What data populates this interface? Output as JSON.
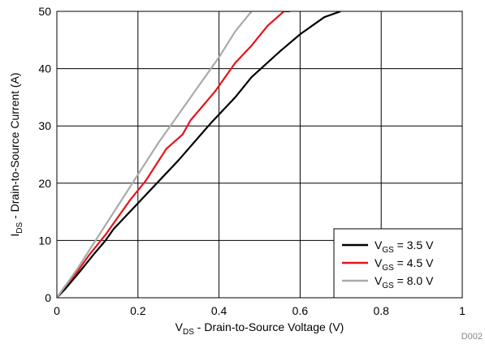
{
  "chart_data": {
    "type": "line",
    "title": "",
    "xlabel": {
      "main": "V",
      "sub": "DS",
      "rest": " - Drain-to-Source Voltage (V)"
    },
    "ylabel": {
      "main": "I",
      "sub": "DS",
      "rest": " - Drain-to-Source Current (A)"
    },
    "xlim": [
      0,
      1
    ],
    "ylim": [
      0,
      50
    ],
    "xticks": [
      0,
      0.2,
      0.4,
      0.6,
      0.8,
      1
    ],
    "yticks": [
      0,
      10,
      20,
      30,
      40,
      50
    ],
    "xtick_labels": [
      "0",
      "0.2",
      "0.4",
      "0.6",
      "0.8",
      "1"
    ],
    "ytick_labels": [
      "0",
      "10",
      "20",
      "30",
      "40",
      "50"
    ],
    "grid": true,
    "legend_position": "bottom-right",
    "footnote": "D002",
    "series": [
      {
        "name": {
          "main": "V",
          "sub": "GS",
          "rest": " = 3.5 V"
        },
        "color": "#000000",
        "x": [
          0,
          0.02,
          0.05,
          0.09,
          0.12,
          0.14,
          0.2,
          0.3,
          0.38,
          0.44,
          0.48,
          0.55,
          0.6,
          0.66,
          0.7
        ],
        "y": [
          0,
          1.5,
          4,
          7.5,
          10,
          12,
          16.5,
          24,
          30.5,
          35,
          38.5,
          43,
          46,
          49,
          50
        ]
      },
      {
        "name": {
          "main": "V",
          "sub": "GS",
          "rest": " = 4.5 V"
        },
        "color": "#e8121a",
        "x": [
          0,
          0.02,
          0.05,
          0.08,
          0.12,
          0.15,
          0.18,
          0.22,
          0.27,
          0.31,
          0.33,
          0.39,
          0.44,
          0.48,
          0.52,
          0.56,
          0.575
        ],
        "y": [
          0,
          2,
          4.5,
          7.5,
          11,
          14,
          17,
          20.5,
          26,
          28.5,
          31,
          36,
          41,
          44,
          47.5,
          50,
          50
        ]
      },
      {
        "name": {
          "main": "V",
          "sub": "GS",
          "rest": " = 8.0 V"
        },
        "color": "#aaaaaa",
        "x": [
          0,
          0.05,
          0.1,
          0.15,
          0.2,
          0.25,
          0.3,
          0.35,
          0.4,
          0.44,
          0.48
        ],
        "y": [
          0,
          5,
          10.5,
          16,
          21.5,
          27,
          32,
          37,
          42,
          46.5,
          50
        ]
      }
    ]
  }
}
